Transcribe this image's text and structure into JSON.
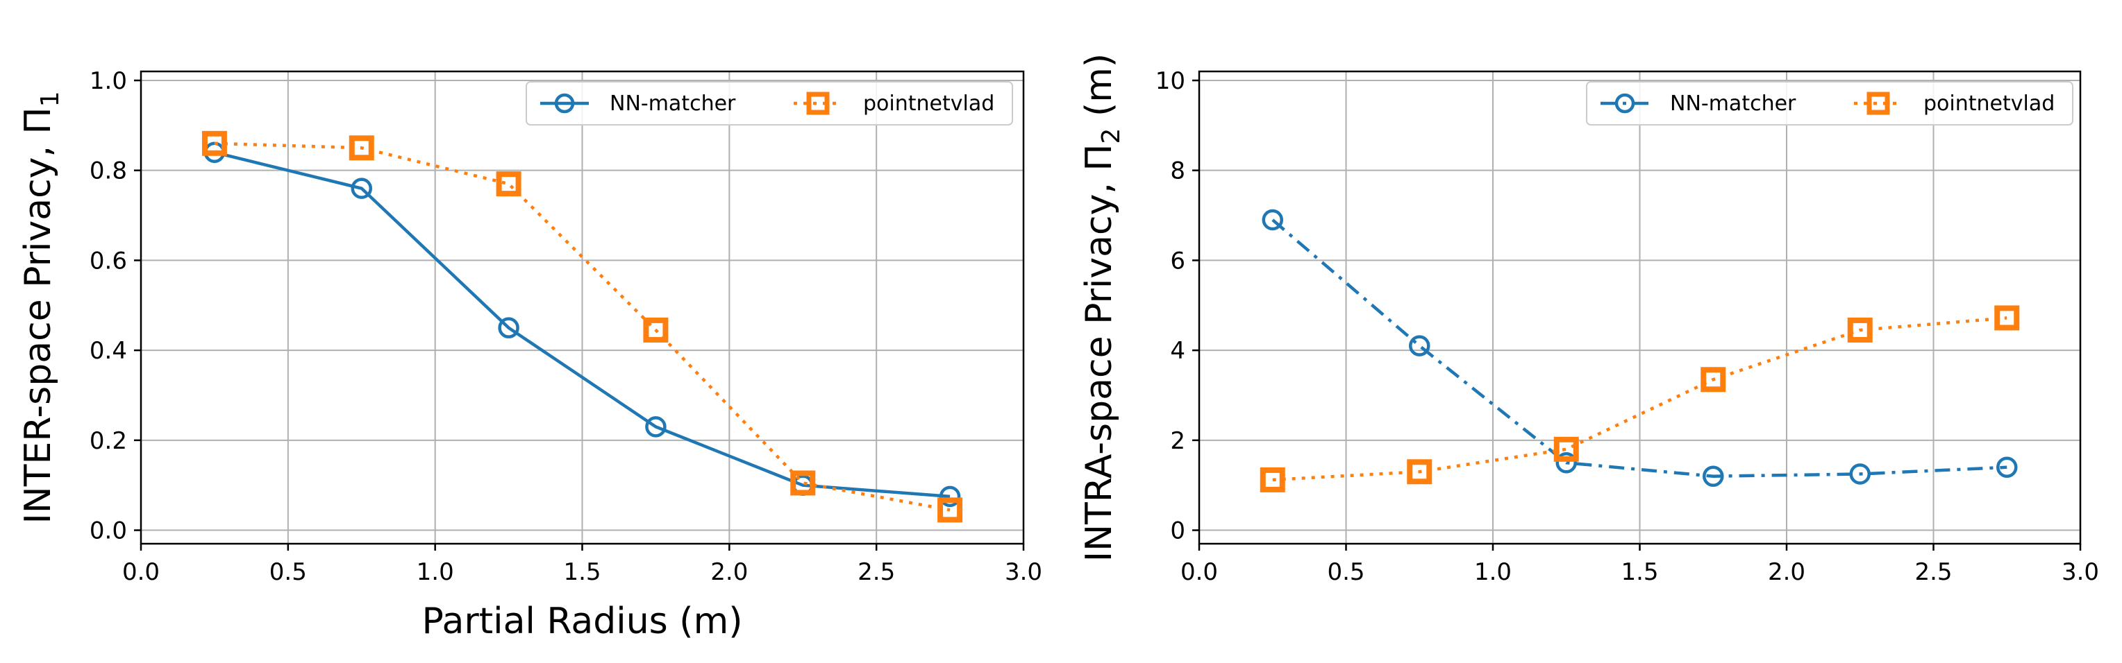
{
  "chart_data": [
    {
      "type": "line",
      "xlabel": "Partial Radius (m)",
      "ylabel": "INTER-space Privacy, Π",
      "ylabel_sub": "1",
      "xlim": [
        0.0,
        3.0
      ],
      "ylim": [
        -0.03,
        1.02
      ],
      "xticks": [
        "0.0",
        "0.5",
        "1.0",
        "1.5",
        "2.0",
        "2.5",
        "3.0"
      ],
      "yticks": [
        "0.0",
        "0.2",
        "0.4",
        "0.6",
        "0.8",
        "1.0"
      ],
      "grid": true,
      "legend": {
        "placement": "top-right",
        "ncol": 2
      },
      "x": [
        0.25,
        0.75,
        1.25,
        1.75,
        2.25,
        2.75
      ],
      "series": [
        {
          "name": "NN-matcher",
          "values": [
            0.84,
            0.76,
            0.45,
            0.23,
            0.1,
            0.075
          ],
          "color": "#1f77b4",
          "linestyle": "solid",
          "marker": "circle"
        },
        {
          "name": "pointnetvlad",
          "values": [
            0.86,
            0.85,
            0.77,
            0.445,
            0.105,
            0.045
          ],
          "color": "#ff7f0e",
          "linestyle": "dotted",
          "marker": "square"
        }
      ]
    },
    {
      "type": "line",
      "xlabel": "",
      "ylabel": "INTRA-space Privacy, Π",
      "ylabel_sub": "2",
      "ylabel_unit": " (m)",
      "xlim": [
        0.0,
        3.0
      ],
      "ylim": [
        -0.3,
        10.2
      ],
      "xticks": [
        "0.0",
        "0.5",
        "1.0",
        "1.5",
        "2.0",
        "2.5",
        "3.0"
      ],
      "yticks": [
        "0",
        "2",
        "4",
        "6",
        "8",
        "10"
      ],
      "grid": true,
      "legend": {
        "placement": "top-right",
        "ncol": 2
      },
      "x": [
        0.25,
        0.75,
        1.25,
        1.75,
        2.25,
        2.75
      ],
      "series": [
        {
          "name": "NN-matcher",
          "values": [
            6.9,
            4.1,
            1.5,
            1.2,
            1.25,
            1.4
          ],
          "color": "#1f77b4",
          "linestyle": "dashdot",
          "marker": "circle"
        },
        {
          "name": "pointnetvlad",
          "values": [
            1.12,
            1.3,
            1.8,
            3.35,
            4.45,
            4.72
          ],
          "color": "#ff7f0e",
          "linestyle": "dotted",
          "marker": "square"
        }
      ]
    }
  ]
}
